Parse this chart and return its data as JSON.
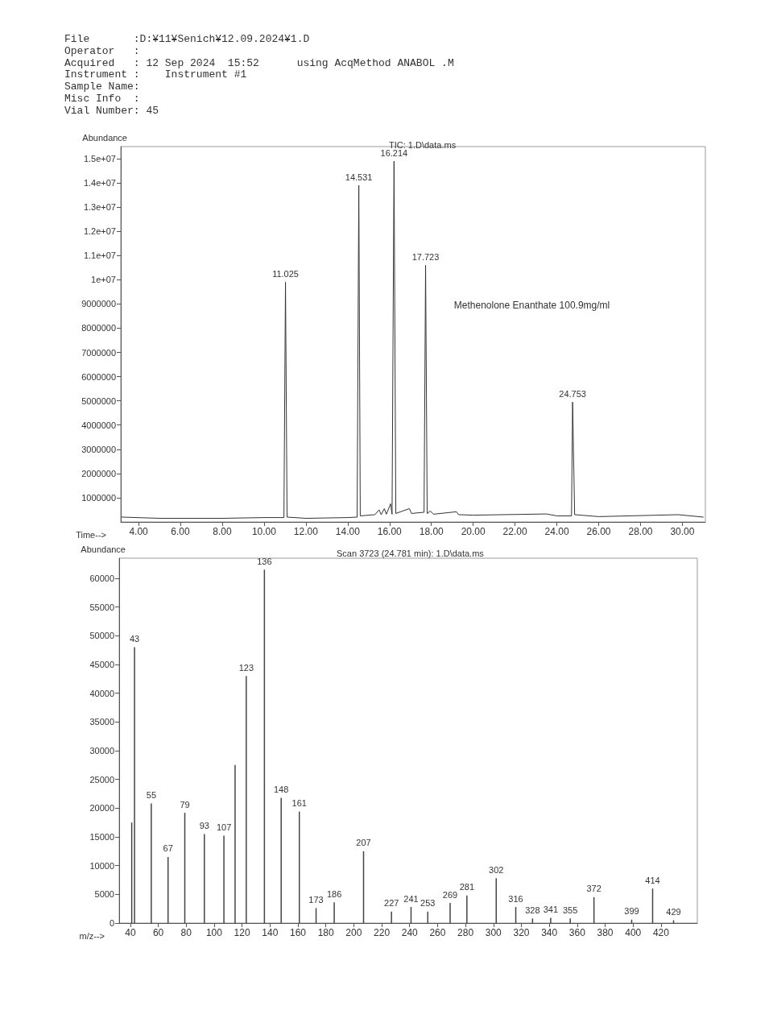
{
  "chart_data": [
    {
      "type": "line",
      "title": "TIC: 1.D\\data.ms",
      "subtitle": "File       :D:¥11¥Senich¥12.09.2024¥1.D\nOperator   :\nAcquired   : 12 Sep 2024  15:52      using AcqMethod ANABOL .M\nInstrument :    Instrument #1\nSample Name:\nMisc Info  :\nVial Number: 45",
      "xlabel": "Time-->",
      "ylabel": "Abundance",
      "annotations": [
        "Methenolone Enanthate 100.9mg/ml",
        {
          "text": "11.025",
          "x": 11.025,
          "y": 9900000
        },
        {
          "text": "14.531",
          "x": 14.531,
          "y": 13900000
        },
        {
          "text": "16.214",
          "x": 16.214,
          "y": 14900000
        },
        {
          "text": "17.723",
          "x": 17.723,
          "y": 10600000
        },
        {
          "text": "24.753",
          "x": 24.753,
          "y": 4950000
        }
      ],
      "x": [
        3.2,
        5.0,
        8.0,
        10.0,
        10.95,
        11.025,
        11.1,
        12.0,
        14.0,
        14.45,
        14.531,
        14.6,
        15.3,
        15.5,
        15.6,
        15.75,
        15.85,
        16.05,
        16.12,
        16.214,
        16.3,
        16.95,
        17.05,
        17.65,
        17.723,
        17.8,
        17.95,
        18.1,
        19.2,
        19.3,
        20.0,
        23.5,
        24.0,
        24.7,
        24.753,
        24.85,
        26.0,
        29.8,
        31.0
      ],
      "values": [
        200000,
        150000,
        150000,
        180000,
        180000,
        9900000,
        200000,
        150000,
        180000,
        200000,
        13900000,
        250000,
        300000,
        500000,
        300000,
        550000,
        320000,
        750000,
        320000,
        14900000,
        350000,
        550000,
        350000,
        400000,
        10600000,
        350000,
        450000,
        320000,
        420000,
        300000,
        280000,
        330000,
        250000,
        250000,
        4950000,
        300000,
        220000,
        300000,
        200000
      ],
      "color": "#333333",
      "marker": "none",
      "line_style": "solid",
      "xlim": [
        3.15,
        31.1
      ],
      "xticks": [
        {
          "value": 4,
          "label": "4.00"
        },
        {
          "value": 6,
          "label": "6.00"
        },
        {
          "value": 8,
          "label": "8.00"
        },
        {
          "value": 10,
          "label": "10.00"
        },
        {
          "value": 12,
          "label": "12.00"
        },
        {
          "value": 14,
          "label": "14.00"
        },
        {
          "value": 16,
          "label": "16.00"
        },
        {
          "value": 18,
          "label": "18.00"
        },
        {
          "value": 20,
          "label": "20.00"
        },
        {
          "value": 22,
          "label": "22.00"
        },
        {
          "value": 24,
          "label": "24.00"
        },
        {
          "value": 26,
          "label": "26.00"
        },
        {
          "value": 28,
          "label": "28.00"
        },
        {
          "value": 30,
          "label": "30.00"
        }
      ],
      "ylim": [
        0,
        15500000
      ],
      "yticks": [
        1000000,
        2000000,
        3000000,
        4000000,
        5000000,
        6000000,
        7000000,
        8000000,
        9000000,
        {
          "value": 10000000,
          "label": "1e+07"
        },
        {
          "value": 11000000,
          "label": "1.1e+07"
        },
        {
          "value": 12000000,
          "label": "1.2e+07"
        },
        {
          "value": 13000000,
          "label": "1.3e+07"
        },
        {
          "value": 14000000,
          "label": "1.4e+07"
        },
        {
          "value": 15000000,
          "label": "1.5e+07"
        }
      ]
    },
    {
      "type": "bar",
      "title": "Scan 3723 (24.781 min): 1.D\\data.ms",
      "xlabel": "m/z-->",
      "ylabel": "Abundance",
      "x": [
        41,
        43,
        55,
        67,
        79,
        93,
        107,
        115,
        123,
        136,
        148,
        161,
        173,
        186,
        207,
        227,
        241,
        253,
        269,
        281,
        302,
        316,
        328,
        341,
        355,
        372,
        399,
        414,
        429
      ],
      "values": [
        17500,
        48000,
        20800,
        11500,
        19200,
        15500,
        15200,
        27500,
        43000,
        61500,
        21800,
        19400,
        2600,
        3600,
        12500,
        2000,
        2800,
        2000,
        3500,
        4800,
        7800,
        2800,
        800,
        900,
        800,
        4500,
        600,
        6000,
        500
      ],
      "annotations": [
        {
          "text": "43",
          "x": 43,
          "y": 48000
        },
        {
          "text": "55",
          "x": 55,
          "y": 20800
        },
        {
          "text": "67",
          "x": 67,
          "y": 11500
        },
        {
          "text": "79",
          "x": 79,
          "y": 19200
        },
        {
          "text": "93",
          "x": 93,
          "y": 15500
        },
        {
          "text": "107",
          "x": 107,
          "y": 15200
        },
        {
          "text": "123",
          "x": 123,
          "y": 43000
        },
        {
          "text": "136",
          "x": 136,
          "y": 61500
        },
        {
          "text": "148",
          "x": 148,
          "y": 21800
        },
        {
          "text": "161",
          "x": 161,
          "y": 19400
        },
        {
          "text": "173",
          "x": 173,
          "y": 2600
        },
        {
          "text": "186",
          "x": 186,
          "y": 3600
        },
        {
          "text": "207",
          "x": 207,
          "y": 12500
        },
        {
          "text": "227",
          "x": 227,
          "y": 2000
        },
        {
          "text": "241",
          "x": 241,
          "y": 2800
        },
        {
          "text": "253",
          "x": 253,
          "y": 2000
        },
        {
          "text": "269",
          "x": 269,
          "y": 3500
        },
        {
          "text": "281",
          "x": 281,
          "y": 4800
        },
        {
          "text": "302",
          "x": 302,
          "y": 7800
        },
        {
          "text": "316",
          "x": 316,
          "y": 2800
        },
        {
          "text": "328",
          "x": 328,
          "y": 800
        },
        {
          "text": "341",
          "x": 341,
          "y": 900
        },
        {
          "text": "355",
          "x": 355,
          "y": 800
        },
        {
          "text": "372",
          "x": 372,
          "y": 4500
        },
        {
          "text": "399",
          "x": 399,
          "y": 600
        },
        {
          "text": "414",
          "x": 414,
          "y": 6000
        },
        {
          "text": "429",
          "x": 429,
          "y": 500
        }
      ],
      "color": "#444444",
      "xlim": [
        32,
        446
      ],
      "xticks": [
        40,
        60,
        80,
        100,
        120,
        140,
        160,
        180,
        200,
        220,
        240,
        260,
        280,
        300,
        320,
        340,
        360,
        380,
        400,
        420
      ],
      "ylim": [
        0,
        63500
      ],
      "yticks": [
        0,
        5000,
        10000,
        15000,
        20000,
        25000,
        30000,
        35000,
        40000,
        45000,
        50000,
        55000,
        60000
      ]
    }
  ]
}
